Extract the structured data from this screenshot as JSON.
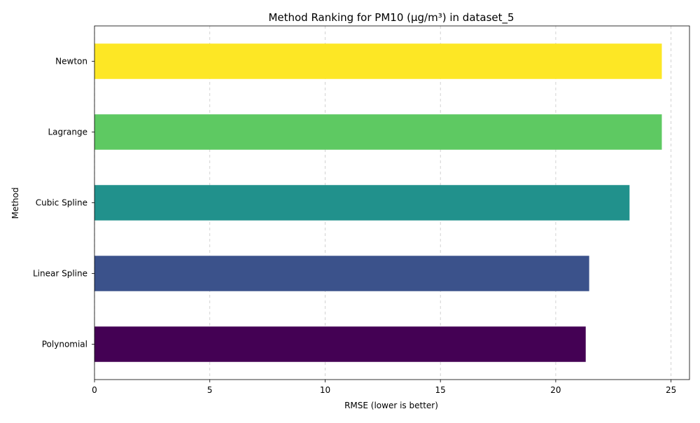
{
  "chart_data": {
    "type": "bar",
    "orientation": "horizontal",
    "title": "Method Ranking for PM10 (µg/m³) in dataset_5",
    "xlabel": "RMSE (lower is better)",
    "ylabel": "Method",
    "categories": [
      "Polynomial",
      "Linear Spline",
      "Cubic Spline",
      "Lagrange",
      "Newton"
    ],
    "values": [
      21.3,
      21.45,
      23.2,
      24.6,
      24.6
    ],
    "colors": [
      "#440154",
      "#3b528b",
      "#21918c",
      "#5ec962",
      "#fde725"
    ],
    "xlim": [
      0,
      25.8
    ],
    "xticks": [
      0,
      5,
      10,
      15,
      20,
      25
    ],
    "grid": "x-dashed"
  }
}
